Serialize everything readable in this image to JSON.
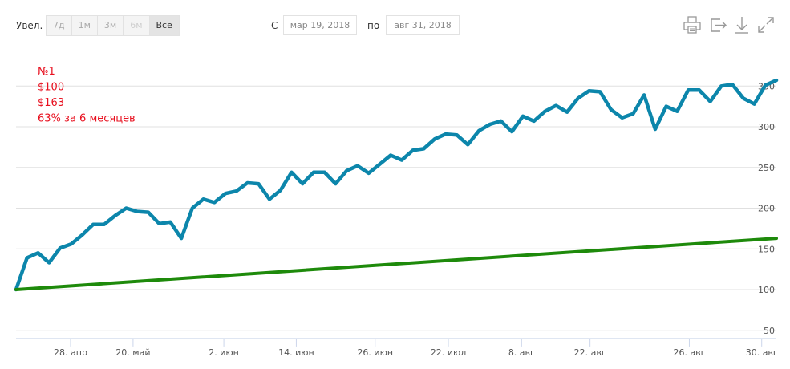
{
  "toolbar": {
    "zoom_label": "Увел.",
    "zoom_buttons": [
      "7д",
      "1м",
      "3м",
      "6м",
      "Все"
    ],
    "from_label": "С",
    "from_date": "мар 19, 2018",
    "to_label": "по",
    "to_date": "авг 31, 2018",
    "icons": [
      "print-icon",
      "export-icon",
      "download-icon",
      "fullscreen-icon"
    ]
  },
  "colors": {
    "series_blue": "#0c86ab",
    "series_green": "#1e8a0b",
    "annotation_red": "#e8101f",
    "grid": "#e0e0e0"
  },
  "chart_data": {
    "type": "line",
    "annotation": [
      "№1",
      "$100",
      "$163",
      " 63% за 6 месяцев"
    ],
    "x_tick_labels": [
      "28. апр",
      "20. май",
      "2. июн",
      "14. июн",
      "26. июн",
      "22. июл",
      "8. авг",
      "22. авг",
      "26. авг",
      "30. авг"
    ],
    "y_ticks": [
      50,
      100,
      150,
      200,
      250,
      300,
      350
    ],
    "y_tick_labels": [
      "50",
      "100",
      "150",
      "200",
      "250",
      "300",
      "350"
    ],
    "ylim": [
      40,
      355
    ],
    "grid": true,
    "series": [
      {
        "color": "#0c86ab",
        "values": [
          100,
          139,
          145,
          133,
          151,
          156,
          167,
          180,
          180,
          191,
          200,
          196,
          195,
          181,
          183,
          163,
          200,
          211,
          207,
          218,
          221,
          231,
          230,
          211,
          222,
          244,
          230,
          244,
          244,
          230,
          246,
          252,
          243,
          254,
          265,
          259,
          271,
          273,
          285,
          291,
          290,
          278,
          295,
          303,
          307,
          294,
          313,
          307,
          319,
          326,
          318,
          335,
          344,
          343,
          321,
          311,
          316,
          339,
          297,
          325,
          319,
          345,
          345,
          331,
          350,
          352,
          335,
          328,
          351,
          357
        ]
      },
      {
        "color": "#1e8a0b",
        "values": [
          100,
          163
        ]
      }
    ]
  }
}
